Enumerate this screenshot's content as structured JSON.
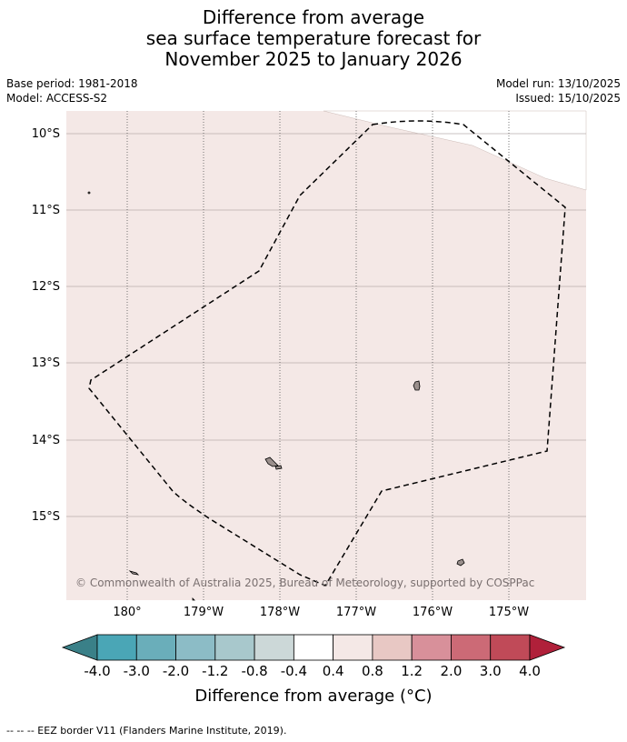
{
  "title": {
    "line1": "Difference from average",
    "line2": "sea surface temperature forecast for",
    "line3": "November 2025 to January 2026"
  },
  "meta": {
    "base_period": "Base period: 1981-2018",
    "model": "Model: ACCESS-S2",
    "model_run": "Model run: 13/10/2025",
    "issued": "Issued: 15/10/2025"
  },
  "map": {
    "lat_labels": [
      "10°S",
      "11°S",
      "12°S",
      "13°S",
      "14°S",
      "15°S"
    ],
    "lon_labels": [
      "180°",
      "179°W",
      "178°W",
      "177°W",
      "176°W",
      "175°W"
    ],
    "copyright": "© Commonwealth of Australia 2025, Bureau of Meteorology, supported by COSPPac",
    "ocean_color": "#f4e8e6",
    "land_color": "#9a8f8c"
  },
  "colorbar": {
    "tick_labels": [
      "-4.0",
      "-3.0",
      "-2.0",
      "-1.2",
      "-0.8",
      "-0.4",
      "0.4",
      "0.8",
      "1.2",
      "2.0",
      "3.0",
      "4.0"
    ],
    "colors": [
      "#3a8088",
      "#4aa6b6",
      "#6aaeba",
      "#8cbcc6",
      "#a8c8cc",
      "#ccd8d8",
      "#ffffff",
      "#f4e8e6",
      "#e8c8c4",
      "#d8909a",
      "#cc6a76",
      "#c04a58",
      "#b0203a"
    ],
    "label": "Difference from average (°C)"
  },
  "footer": "-- -- -- EEZ border V11 (Flanders Marine Institute, 2019)."
}
